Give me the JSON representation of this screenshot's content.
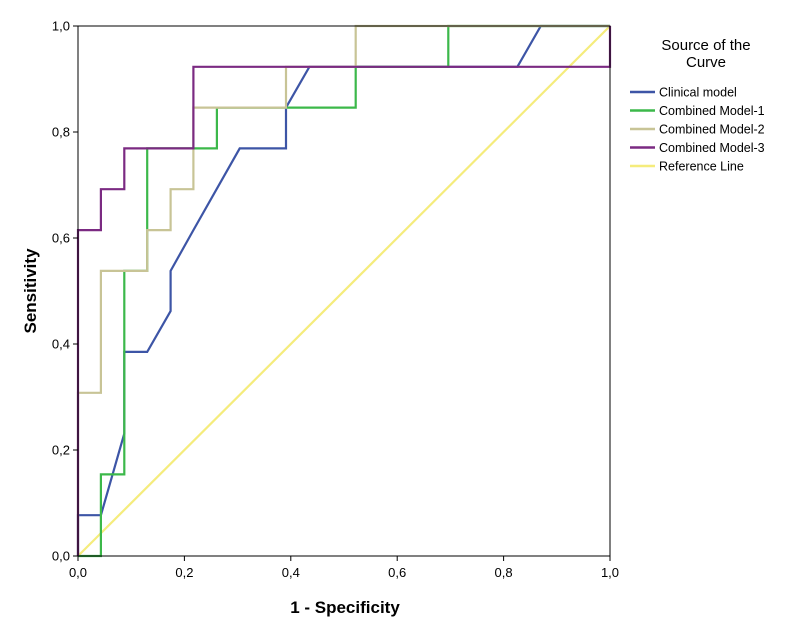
{
  "chart_data": {
    "type": "line",
    "title": "",
    "xlabel": "1 - Specificity",
    "ylabel": "Sensitivity",
    "xlim": [
      0,
      1
    ],
    "ylim": [
      0,
      1
    ],
    "grid": false,
    "x_ticks": [
      0,
      0.2,
      0.4,
      0.6,
      0.8,
      1.0
    ],
    "x_tick_labels": [
      "0,0",
      "0,2",
      "0,4",
      "0,6",
      "0,8",
      "1,0"
    ],
    "y_ticks": [
      0,
      0.2,
      0.4,
      0.6,
      0.8,
      1.0
    ],
    "y_tick_labels": [
      "0,0",
      "0,2",
      "0,4",
      "0,6",
      "0,8",
      "1,0"
    ],
    "legend": {
      "title_line1": "Source of the",
      "title_line2": "Curve",
      "placement": "right"
    },
    "series": [
      {
        "name": "Clinical model",
        "color": "#3d55a6",
        "x": [
          0,
          0,
          0.043,
          0.087,
          0.087,
          0.13,
          0.174,
          0.174,
          0.217,
          0.304,
          0.391,
          0.391,
          0.435,
          0.826,
          0.87,
          1.0
        ],
        "y": [
          0,
          0.077,
          0.077,
          0.231,
          0.385,
          0.385,
          0.462,
          0.538,
          0.615,
          0.769,
          0.769,
          0.846,
          0.923,
          0.923,
          1.0,
          1.0
        ]
      },
      {
        "name": "Combined Model-1",
        "color": "#3cb84a",
        "x": [
          0,
          0.043,
          0.043,
          0.087,
          0.087,
          0.13,
          0.13,
          0.217,
          0.261,
          0.261,
          0.391,
          0.391,
          0.522,
          0.522,
          0.696,
          0.696,
          1.0
        ],
        "y": [
          0,
          0,
          0.154,
          0.154,
          0.538,
          0.538,
          0.769,
          0.769,
          0.769,
          0.846,
          0.846,
          0.846,
          0.846,
          0.923,
          0.923,
          1.0,
          1.0
        ]
      },
      {
        "name": "Combined Model-2",
        "color": "#c8c496",
        "x": [
          0,
          0,
          0.043,
          0.043,
          0.13,
          0.13,
          0.174,
          0.174,
          0.217,
          0.217,
          0.391,
          0.391,
          0.522,
          0.522,
          1.0
        ],
        "y": [
          0,
          0.308,
          0.308,
          0.538,
          0.538,
          0.615,
          0.615,
          0.692,
          0.692,
          0.846,
          0.846,
          0.923,
          0.923,
          1.0,
          1.0
        ]
      },
      {
        "name": "Combined Model-3",
        "color": "#7b2a82",
        "x": [
          0,
          0,
          0.043,
          0.043,
          0.087,
          0.087,
          0.217,
          0.217,
          1.0,
          1.0
        ],
        "y": [
          0,
          0.615,
          0.615,
          0.692,
          0.692,
          0.769,
          0.769,
          0.923,
          0.923,
          1.0
        ]
      },
      {
        "name": "Reference Line",
        "color": "#f5ec7c",
        "x": [
          0,
          1
        ],
        "y": [
          0,
          1
        ]
      }
    ]
  }
}
